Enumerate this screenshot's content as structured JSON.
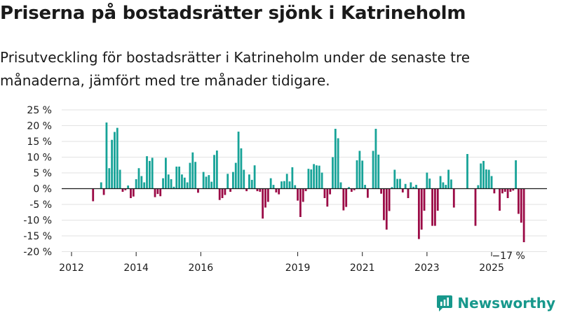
{
  "title": "Priserna på bostadsrätter sjönk i Katrineholm",
  "subtitle": "Prisutveckling för bostadsrätter i Katrineholm under de senaste tre månaderna, jämfört med tre månader tidigare.",
  "brand": "Newsworthy",
  "colors": {
    "positive": "#17a398",
    "negative": "#9b0a46",
    "grid": "#e2e2e2",
    "axis": "#1a1a1a",
    "text": "#1a1a1a",
    "brand": "#17988c"
  },
  "chart_data": {
    "type": "bar",
    "title": "Priserna på bostadsrätter sjönk i Katrineholm",
    "xlabel": "",
    "ylabel": "",
    "ylim": [
      -20,
      25
    ],
    "yticks": [
      25,
      20,
      15,
      10,
      5,
      0,
      -5,
      -10,
      -15,
      -20
    ],
    "ytick_labels": [
      "25 %",
      "20 %",
      "15 %",
      "10 %",
      "5 %",
      "0 %",
      "-5 %",
      "-10 %",
      "-15 %",
      "-20 %"
    ],
    "xticks": [
      2012,
      2014,
      2016,
      2019,
      2021,
      2023,
      2025
    ],
    "start": "2012-01",
    "annotation": "−17 %",
    "values": [
      null,
      null,
      null,
      null,
      null,
      null,
      null,
      null,
      -4,
      null,
      null,
      2,
      -2,
      21,
      6.5,
      15.5,
      18,
      19.3,
      6,
      -1,
      -0.5,
      1,
      -3,
      -2.5,
      3,
      6.5,
      4,
      2,
      10.3,
      8.8,
      9.8,
      -2.7,
      -1.7,
      -2.4,
      3.3,
      9.8,
      4.5,
      3,
      0.6,
      7,
      7,
      4.5,
      3.5,
      2,
      8.2,
      11.5,
      8.5,
      -1.3,
      null,
      5.3,
      3.8,
      4.3,
      2.2,
      10.7,
      12.1,
      -3.6,
      -3,
      -2,
      4.7,
      -1,
      5.3,
      8.2,
      18.1,
      12.8,
      6,
      -0.8,
      4.5,
      2.8,
      7.4,
      -0.8,
      -1,
      -9.5,
      -6,
      -4.2,
      3.3,
      1.2,
      -1.2,
      -1.8,
      2.3,
      2.4,
      4.7,
      2.3,
      6.8,
      1.1,
      -3.8,
      -9,
      -4.2,
      -0.8,
      6.3,
      6.1,
      7.8,
      7.4,
      7.3,
      5.1,
      -3,
      -5.7,
      -1.8,
      10,
      19,
      16,
      2,
      -6.9,
      -5.8,
      0.5,
      -1,
      -0.5,
      9,
      12,
      8.9,
      1.2,
      -2.9,
      null,
      12,
      19,
      10.8,
      -1.6,
      -10,
      -13,
      -7.1,
      0.5,
      6,
      3.1,
      3.1,
      -1.2,
      1.5,
      -3,
      2,
      0.6,
      1.2,
      -16,
      -13,
      -7,
      5.1,
      3.2,
      -11.8,
      -11.8,
      -7,
      4,
      2,
      1.2,
      6,
      2.9,
      -6,
      null,
      null,
      null,
      null,
      11,
      null,
      null,
      -11.8,
      1.1,
      8,
      8.8,
      6.1,
      6,
      4,
      -1.5,
      null,
      -7,
      -1.5,
      -1,
      -3,
      -1,
      -0.6,
      9,
      -8,
      -10.8,
      -17
    ]
  }
}
